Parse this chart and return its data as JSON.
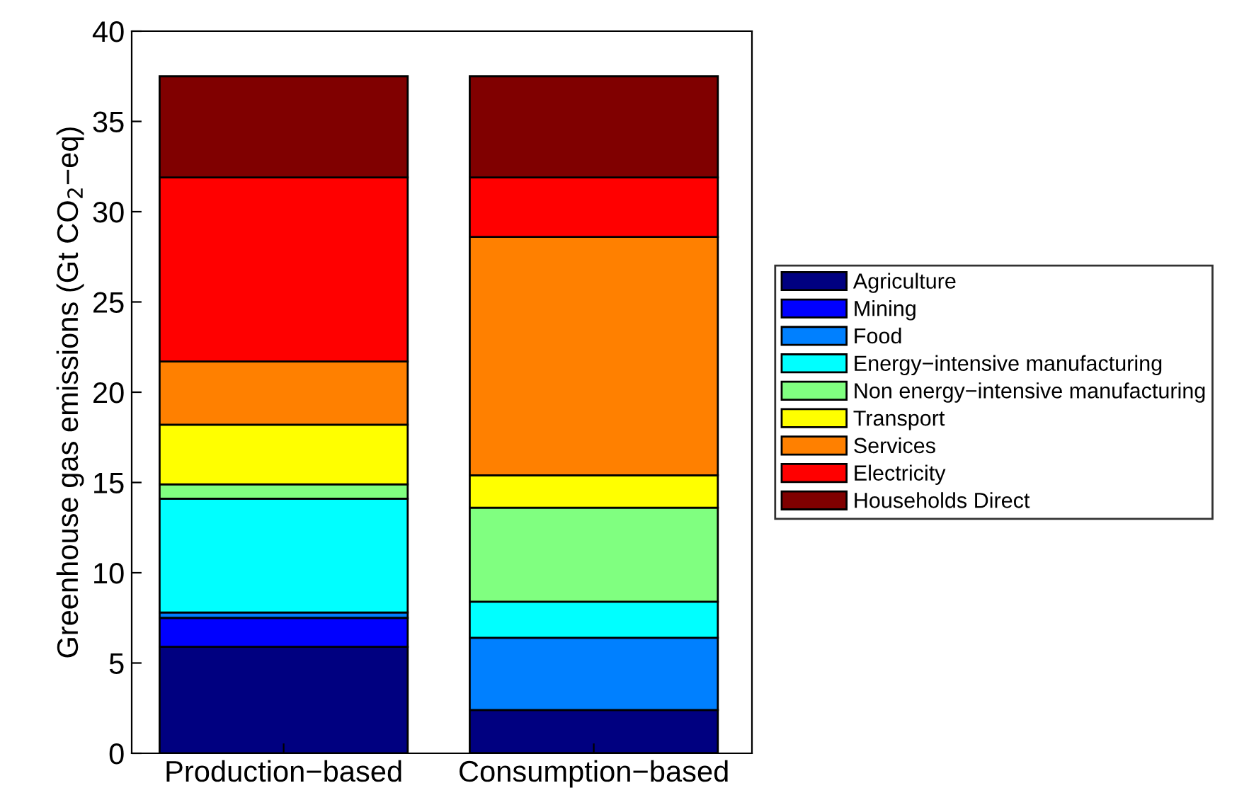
{
  "chart_data": {
    "type": "bar",
    "stacked": true,
    "ylabel": "Greenhouse gas emissions (Gt CO$_{2}$−eq)",
    "categories": [
      "Production−based",
      "Consumption−based"
    ],
    "series": [
      {
        "name": "Agriculture",
        "color": "#000080",
        "values": [
          5.9,
          2.4
        ]
      },
      {
        "name": "Mining",
        "color": "#0000ff",
        "values": [
          1.6,
          null
        ]
      },
      {
        "name": "Food",
        "color": "#0080ff",
        "values": [
          0.3,
          4.0
        ]
      },
      {
        "name": "Energy−intensive manufacturing",
        "color": "#00ffff",
        "values": [
          6.3,
          2.0
        ]
      },
      {
        "name": "Non energy−intensive manufacturing",
        "color": "#80ff80",
        "values": [
          0.8,
          5.2
        ]
      },
      {
        "name": "Transport",
        "color": "#ffff00",
        "values": [
          3.3,
          1.8
        ]
      },
      {
        "name": "Services",
        "color": "#ff8000",
        "values": [
          3.5,
          13.2
        ]
      },
      {
        "name": "Electricity",
        "color": "#ff0000",
        "values": [
          10.2,
          3.3
        ]
      },
      {
        "name": "Households Direct",
        "color": "#800000",
        "values": [
          5.6,
          5.6
        ]
      }
    ],
    "ylim": [
      0,
      40
    ],
    "yticks": [
      0,
      5,
      10,
      15,
      20,
      25,
      30,
      35,
      40
    ],
    "grid": false,
    "legend": "right"
  }
}
